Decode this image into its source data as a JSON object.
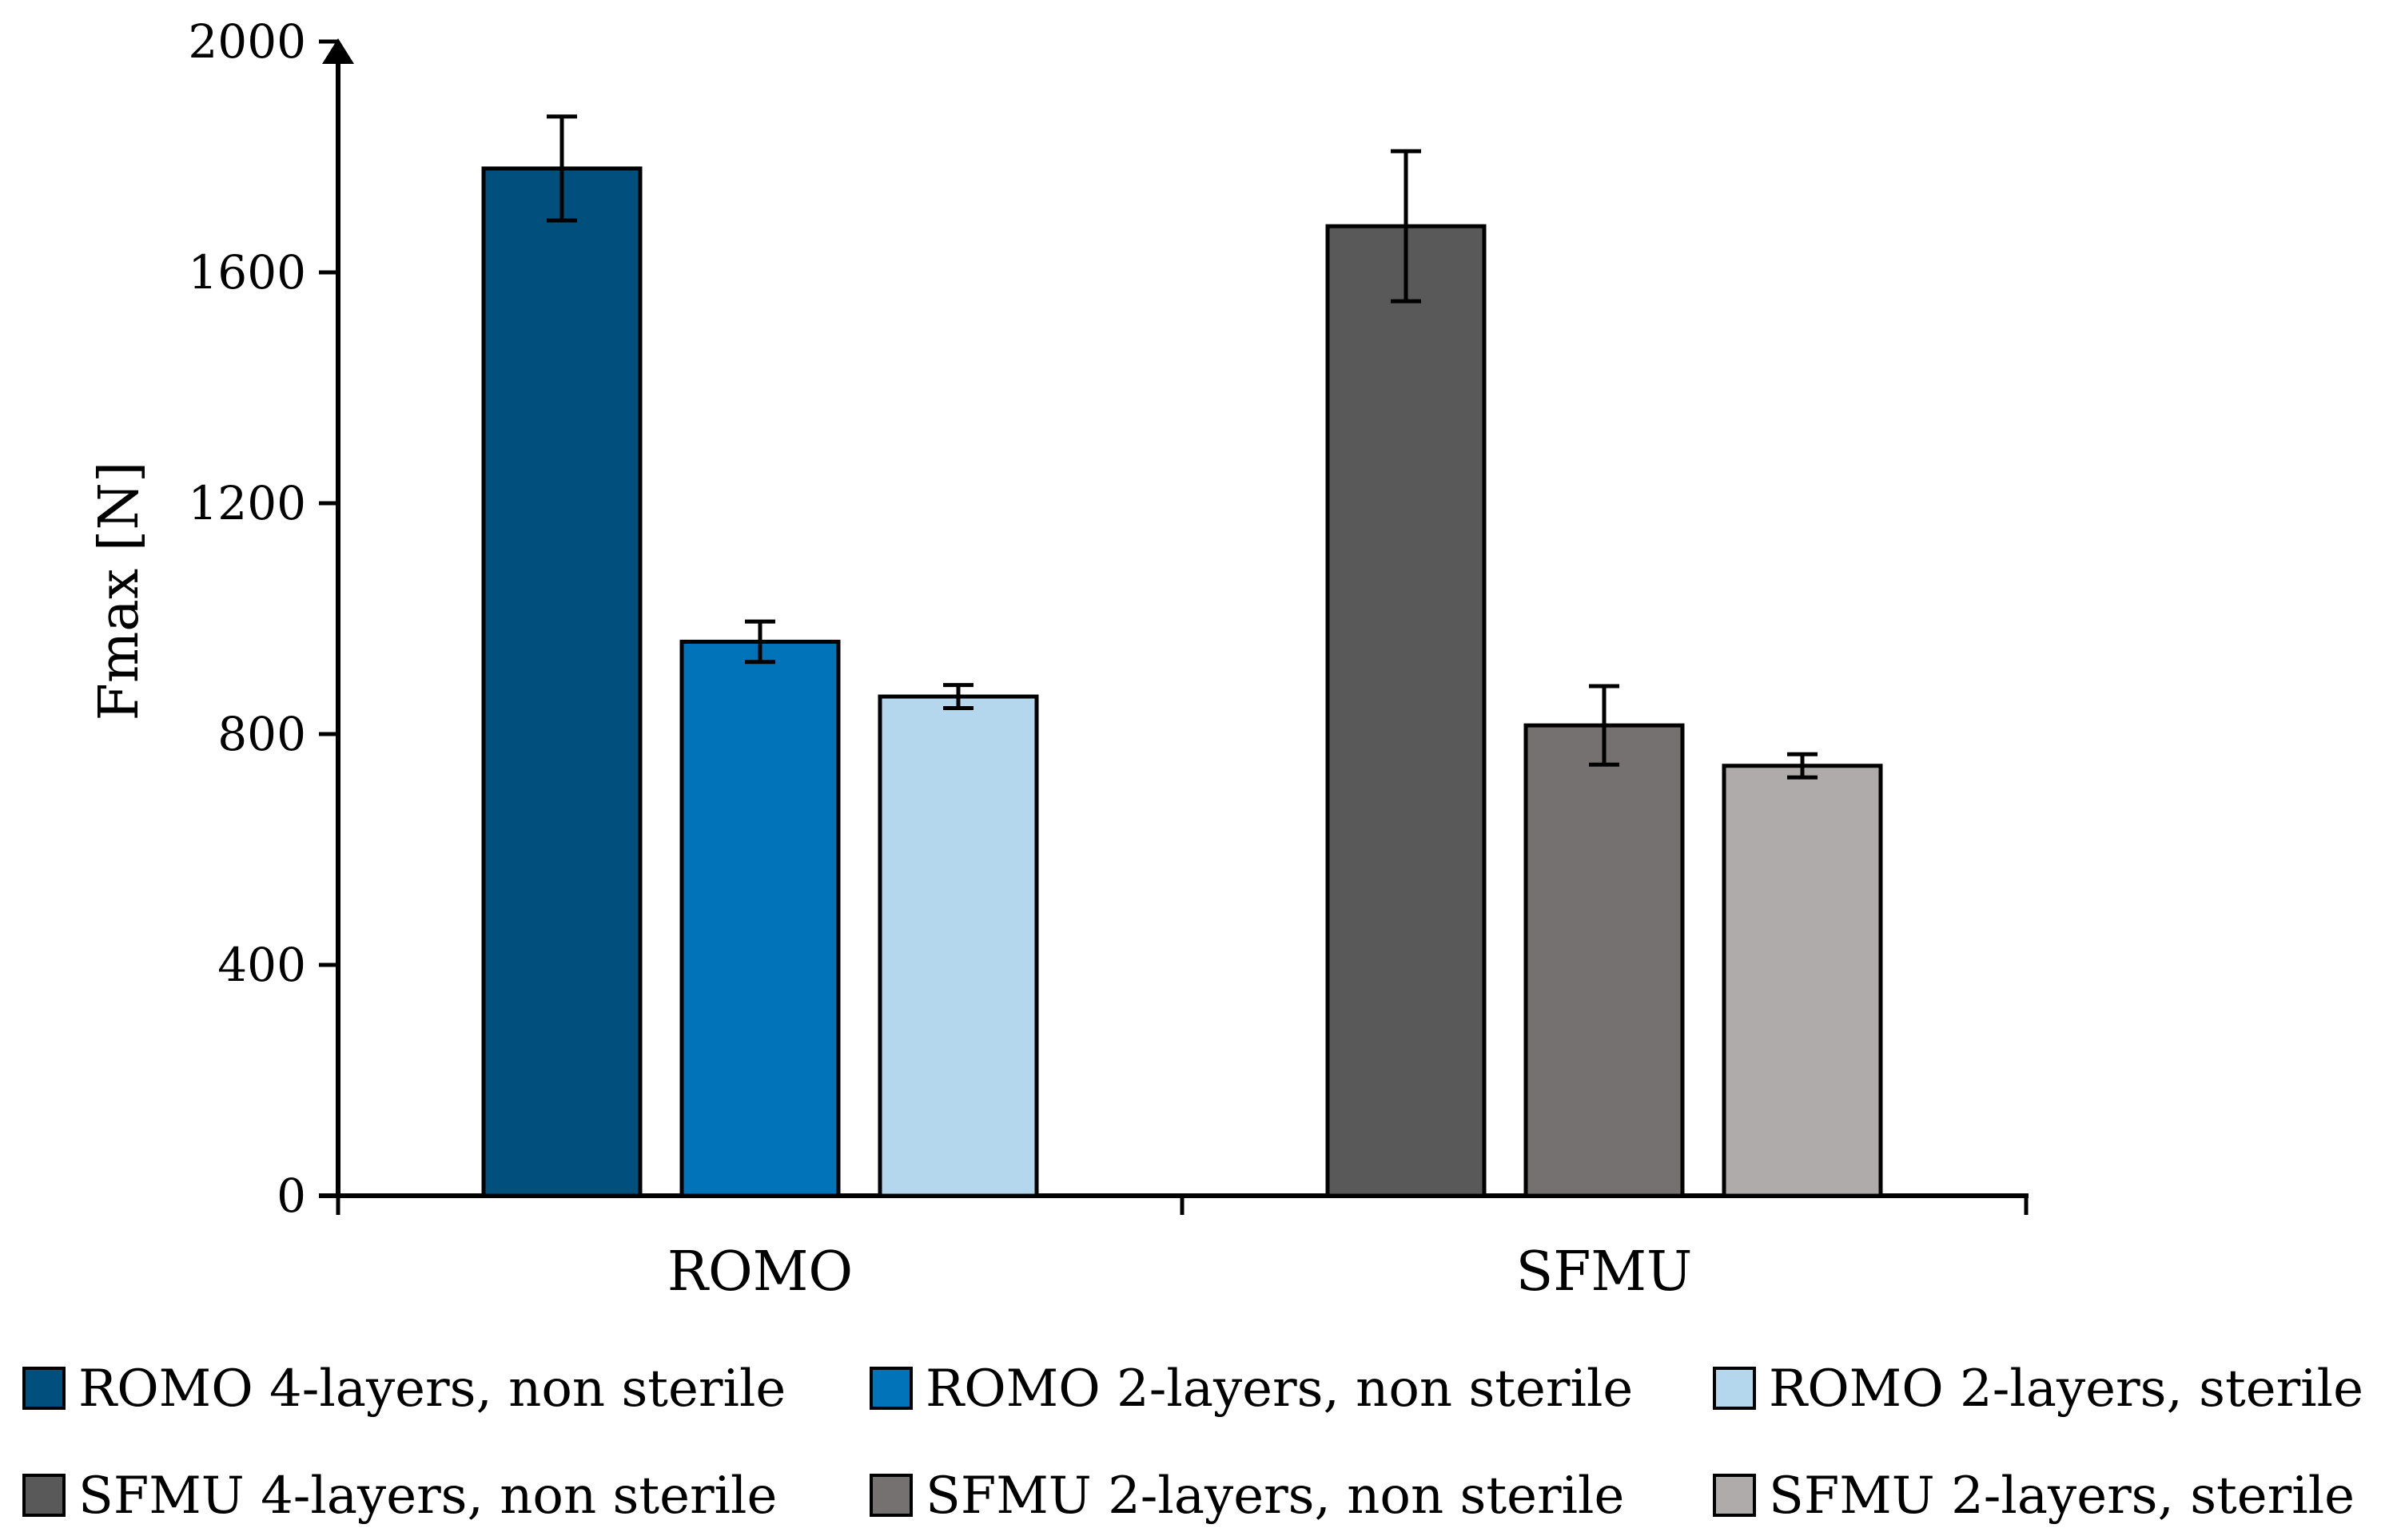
{
  "chart_data": {
    "type": "bar",
    "title": "",
    "xlabel": "",
    "ylabel": "Fmax [N]",
    "ylim": [
      0,
      2000
    ],
    "yticks": [
      0,
      400,
      800,
      1200,
      1600,
      2000
    ],
    "categories": [
      "ROMO",
      "SFMU"
    ],
    "grid": false,
    "legend_position": "bottom",
    "series": [
      {
        "name": "ROMO 4-layers, non sterile",
        "color": "#004f7c",
        "values": [
          1780,
          null
        ],
        "errors": [
          90,
          null
        ]
      },
      {
        "name": "ROMO 2-layers, non sterile",
        "color": "#0073b9",
        "values": [
          960,
          null
        ],
        "errors": [
          35,
          null
        ]
      },
      {
        "name": "ROMO 2-layers, sterile",
        "color": "#b4d7ee",
        "values": [
          865,
          null
        ],
        "errors": [
          20,
          null
        ]
      },
      {
        "name": "SFMU 4-layers, non sterile",
        "color": "#595959",
        "values": [
          null,
          1680
        ],
        "errors": [
          null,
          130
        ]
      },
      {
        "name": "SFMU 2-layers, non sterile",
        "color": "#767171",
        "values": [
          null,
          815
        ],
        "errors": [
          null,
          68
        ]
      },
      {
        "name": "SFMU 2-layers, sterile",
        "color": "#afabab",
        "values": [
          null,
          745
        ],
        "errors": [
          null,
          20
        ]
      }
    ]
  }
}
